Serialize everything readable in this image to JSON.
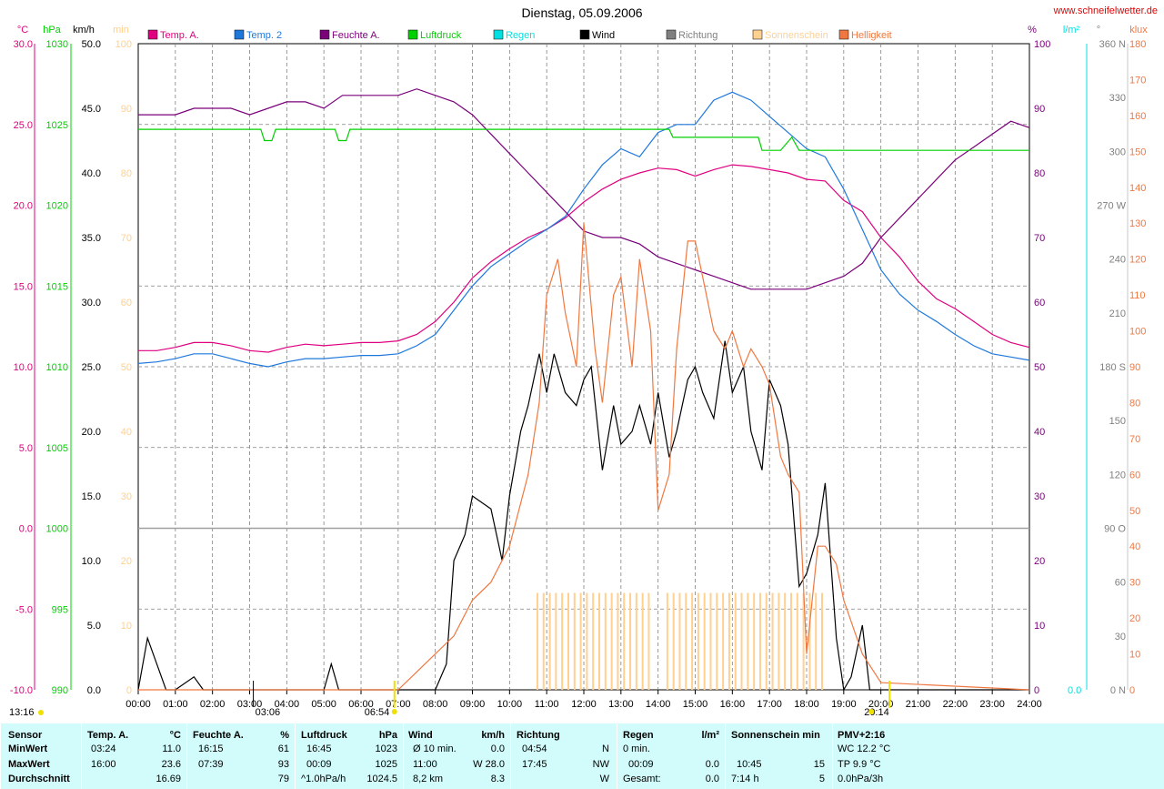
{
  "title": "Dienstag, 05.09.2006",
  "site": "www.schneifelwetter.de",
  "colors": {
    "tempA": "#e0007f",
    "temp2": "#1e78dc",
    "feuchte": "#7a007a",
    "luftdruck": "#00d000",
    "regen": "#00e0e0",
    "wind": "#000000",
    "richtung": "#808080",
    "sonne": "#ffd090",
    "helligkeit": "#f07840",
    "grid": "#808080",
    "panel": "#d2fcfc"
  },
  "legend": [
    {
      "label": "Temp. A.",
      "color": "#e0007f"
    },
    {
      "label": "Temp. 2",
      "color": "#1e78dc"
    },
    {
      "label": "Feuchte A.",
      "color": "#7a007a"
    },
    {
      "label": "Luftdruck",
      "color": "#00d000"
    },
    {
      "label": "Regen",
      "color": "#00e0e0"
    },
    {
      "label": "Wind",
      "color": "#000000"
    },
    {
      "label": "Richtung",
      "color": "#808080"
    },
    {
      "label": "Sonnenschein",
      "color": "#ffd090"
    },
    {
      "label": "Helligkeit",
      "color": "#f07840"
    }
  ],
  "axis_units": {
    "temp": "°C",
    "pressure": "hPa",
    "wind": "km/h",
    "minutes": "min",
    "humidity": "%",
    "rain": "l/m²",
    "direction": "°",
    "lux": "klux"
  },
  "left_axes": {
    "temp": [
      "30.0",
      "25.0",
      "20.0",
      "15.0",
      "10.0",
      "5.0",
      "0.0",
      "-5.0",
      "-10.0"
    ],
    "pressure": [
      "1030",
      "1025",
      "1020",
      "1015",
      "1010",
      "1005",
      "1000",
      "995",
      "990"
    ],
    "wind": [
      "50.0",
      "45.0",
      "40.0",
      "35.0",
      "30.0",
      "25.0",
      "20.0",
      "15.0",
      "10.0",
      "5.0",
      "0.0"
    ],
    "minutes": [
      "100",
      "90",
      "80",
      "70",
      "60",
      "50",
      "40",
      "30",
      "20",
      "10",
      "0"
    ]
  },
  "right_axes": {
    "humidity": [
      "100",
      "90",
      "80",
      "70",
      "60",
      "50",
      "40",
      "30",
      "20",
      "10",
      "0"
    ],
    "rain": "0.0",
    "direction": [
      "360 N",
      "330",
      "300",
      "270 W",
      "240",
      "210",
      "180 S",
      "150",
      "120",
      "90 O",
      "60",
      "30",
      "0 N"
    ],
    "lux": [
      "180",
      "170",
      "160",
      "150",
      "140",
      "130",
      "120",
      "110",
      "100",
      "90",
      "80",
      "70",
      "60",
      "50",
      "40",
      "30",
      "20",
      "10",
      "0"
    ]
  },
  "x_ticks": [
    "00:00",
    "01:00",
    "02:00",
    "03:00",
    "04:00",
    "05:00",
    "06:00",
    "07:00",
    "08:00",
    "09:00",
    "10:00",
    "11:00",
    "12:00",
    "13:00",
    "14:00",
    "15:00",
    "16:00",
    "17:00",
    "18:00",
    "19:00",
    "20:00",
    "21:00",
    "22:00",
    "23:00",
    "24:00"
  ],
  "markers": {
    "current_time": "13:16",
    "min_temp_time": "03:06",
    "sunrise": "06:54",
    "sunset": "20:14"
  },
  "chart_data": {
    "type": "line",
    "x_unit": "hours",
    "xlim": [
      0,
      24
    ],
    "series": [
      {
        "name": "Temp. A.",
        "unit": "°C",
        "x": [
          0,
          0.5,
          1,
          1.5,
          2,
          2.5,
          3,
          3.5,
          4,
          4.5,
          5,
          5.5,
          6,
          6.5,
          7,
          7.5,
          8,
          8.5,
          9,
          9.5,
          10,
          10.5,
          11,
          11.5,
          12,
          12.5,
          13,
          13.5,
          14,
          14.5,
          15,
          15.5,
          16,
          16.5,
          17,
          17.5,
          18,
          18.5,
          19,
          19.5,
          20,
          20.5,
          21,
          21.5,
          22,
          22.5,
          23,
          23.5,
          24
        ],
        "values": [
          11.0,
          11.0,
          11.2,
          11.5,
          11.5,
          11.3,
          11.0,
          10.9,
          11.2,
          11.4,
          11.3,
          11.4,
          11.5,
          11.5,
          11.6,
          12.0,
          12.8,
          14.0,
          15.5,
          16.5,
          17.3,
          18.0,
          18.5,
          19.2,
          20.2,
          21.0,
          21.6,
          22.0,
          22.3,
          22.2,
          21.8,
          22.2,
          22.5,
          22.4,
          22.2,
          22.0,
          21.6,
          21.5,
          20.3,
          19.6,
          18.0,
          16.8,
          15.3,
          14.2,
          13.6,
          12.8,
          12.0,
          11.5,
          11.2
        ]
      },
      {
        "name": "Temp. 2",
        "unit": "°C",
        "x": [
          0,
          0.5,
          1,
          1.5,
          2,
          2.5,
          3,
          3.5,
          4,
          4.5,
          5,
          5.5,
          6,
          6.5,
          7,
          7.5,
          8,
          8.5,
          9,
          9.5,
          10,
          10.5,
          11,
          11.5,
          12,
          12.5,
          13,
          13.5,
          14,
          14.5,
          15,
          15.5,
          16,
          16.5,
          17,
          17.5,
          18,
          18.5,
          19,
          19.5,
          20,
          20.5,
          21,
          21.5,
          22,
          22.5,
          23,
          23.5,
          24
        ],
        "values": [
          10.2,
          10.3,
          10.5,
          10.8,
          10.8,
          10.5,
          10.2,
          10.0,
          10.3,
          10.5,
          10.5,
          10.6,
          10.7,
          10.7,
          10.8,
          11.3,
          12.0,
          13.5,
          15.0,
          16.2,
          17.0,
          17.8,
          18.5,
          19.3,
          21.0,
          22.5,
          23.5,
          23.0,
          24.5,
          25.0,
          25.0,
          26.5,
          27.0,
          26.5,
          25.5,
          24.5,
          23.5,
          23.0,
          21.0,
          18.5,
          16.0,
          14.5,
          13.5,
          12.8,
          12.0,
          11.3,
          10.8,
          10.6,
          10.4
        ]
      },
      {
        "name": "Feuchte A.",
        "unit": "%",
        "x": [
          0,
          0.5,
          1,
          1.5,
          2,
          2.5,
          3,
          3.5,
          4,
          4.5,
          5,
          5.5,
          6,
          6.5,
          7,
          7.5,
          8,
          8.5,
          9,
          9.5,
          10,
          10.5,
          11,
          11.5,
          12,
          12.5,
          13,
          13.5,
          14,
          14.5,
          15,
          15.5,
          16,
          16.5,
          17,
          17.5,
          18,
          18.5,
          19,
          19.5,
          20,
          20.5,
          21,
          21.5,
          22,
          22.5,
          23,
          23.5,
          24
        ],
        "values": [
          89,
          89,
          89,
          90,
          90,
          90,
          89,
          90,
          91,
          91,
          90,
          92,
          92,
          92,
          92,
          93,
          92,
          91,
          89,
          86,
          83,
          80,
          77,
          74,
          71,
          70,
          70,
          69,
          67,
          66,
          65,
          64,
          63,
          62,
          62,
          62,
          62,
          63,
          64,
          66,
          70,
          73,
          76,
          79,
          82,
          84,
          86,
          88,
          87
        ]
      },
      {
        "name": "Luftdruck",
        "unit": "hPa",
        "x": [
          0,
          3.3,
          3.4,
          3.6,
          3.7,
          5.3,
          5.4,
          5.6,
          5.7,
          14.3,
          14.4,
          16.7,
          16.8,
          17.3,
          17.6,
          17.8,
          24
        ],
        "values": [
          1024.7,
          1024.7,
          1024.0,
          1024.0,
          1024.7,
          1024.7,
          1024.0,
          1024.0,
          1024.7,
          1024.7,
          1024.2,
          1024.2,
          1023.4,
          1023.4,
          1024.2,
          1023.4,
          1023.4
        ]
      },
      {
        "name": "Wind",
        "unit": "km/h",
        "x": [
          0,
          0.25,
          0.5,
          0.75,
          1,
          1.5,
          1.75,
          2,
          5,
          5.2,
          5.4,
          5.6,
          6,
          8,
          8.3,
          8.5,
          8.8,
          9,
          9.5,
          9.8,
          10,
          10.3,
          10.5,
          10.8,
          11,
          11.2,
          11.5,
          11.8,
          12,
          12.2,
          12.5,
          12.8,
          13,
          13.3,
          13.5,
          13.8,
          14,
          14.3,
          14.5,
          14.8,
          15,
          15.2,
          15.5,
          15.8,
          16,
          16.3,
          16.5,
          16.8,
          17,
          17.3,
          17.5,
          17.8,
          18,
          18.3,
          18.5,
          18.8,
          19,
          19.2,
          19.5,
          19.7,
          20,
          24
        ],
        "values": [
          0,
          4,
          2,
          0,
          0,
          1,
          0,
          0,
          0,
          2,
          0,
          0,
          0,
          0,
          2,
          10,
          12,
          15,
          14,
          10,
          15,
          20,
          22,
          26,
          23,
          26,
          23,
          22,
          24,
          25,
          17,
          22,
          19,
          20,
          22,
          19,
          23,
          18,
          20,
          24,
          25,
          23,
          21,
          27,
          23,
          25,
          20,
          17,
          24,
          22,
          19,
          8,
          9,
          12,
          16,
          4,
          0,
          1,
          5,
          0,
          0,
          0
        ]
      },
      {
        "name": "Helligkeit",
        "unit": "klux",
        "x": [
          0,
          7,
          7.5,
          8,
          8.5,
          9,
          9.5,
          10,
          10.5,
          10.8,
          11,
          11.3,
          11.5,
          11.8,
          12,
          12.3,
          12.5,
          12.8,
          13,
          13.3,
          13.5,
          13.8,
          14,
          14.3,
          14.5,
          14.8,
          15,
          15.3,
          15.5,
          15.8,
          16,
          16.3,
          16.5,
          16.8,
          17,
          17.3,
          17.5,
          17.8,
          18,
          18.3,
          18.5,
          18.8,
          19,
          19.5,
          20,
          24
        ],
        "values": [
          0,
          0,
          5,
          10,
          15,
          25,
          30,
          40,
          60,
          80,
          110,
          120,
          105,
          90,
          130,
          95,
          80,
          110,
          115,
          90,
          120,
          100,
          50,
          60,
          95,
          125,
          125,
          110,
          100,
          95,
          100,
          90,
          95,
          90,
          85,
          65,
          60,
          55,
          10,
          40,
          40,
          35,
          25,
          10,
          2,
          0
        ]
      }
    ],
    "sunshine_minutes": {
      "start": 10.75,
      "end": 18.5,
      "value": 15
    },
    "ylim": {
      "temp": [
        -10,
        30
      ],
      "pressure": [
        990,
        1030
      ],
      "wind": [
        0,
        50
      ],
      "humidity": [
        0,
        100
      ],
      "klux": [
        0,
        180
      ]
    }
  },
  "stats": {
    "sensor": {
      "header": "Sensor",
      "rows": [
        "MinWert",
        "MaxWert",
        "Durchschnitt"
      ]
    },
    "temp": {
      "header": "Temp. A.",
      "unit": "°C",
      "rows": [
        [
          "03:24",
          "11.0"
        ],
        [
          "16:00",
          "23.6"
        ],
        [
          "",
          "16.69"
        ]
      ]
    },
    "feuchte": {
      "header": "Feuchte A.",
      "unit": "%",
      "rows": [
        [
          "16:15",
          "61"
        ],
        [
          "07:39",
          "93"
        ],
        [
          "",
          "79"
        ]
      ]
    },
    "luftdruck": {
      "header": "Luftdruck",
      "unit": "hPa",
      "rows": [
        [
          "16:45",
          "1023"
        ],
        [
          "00:09",
          "1025"
        ],
        [
          "^1.0hPa/h",
          "1024.5"
        ]
      ]
    },
    "wind": {
      "header": "Wind",
      "unit": "km/h",
      "rows": [
        [
          "Ø 10 min.",
          "0.0"
        ],
        [
          "11:00",
          "W 28.0"
        ],
        [
          "8,2 km",
          "8.3"
        ]
      ]
    },
    "richtung": {
      "header": "Richtung",
      "rows": [
        [
          "04:54",
          "N"
        ],
        [
          "17:45",
          "NW"
        ],
        [
          "",
          "W"
        ]
      ]
    },
    "regen": {
      "header": "Regen",
      "unit": "l/m²",
      "rows": [
        [
          "0 min.",
          ""
        ],
        [
          "00:09",
          "0.0"
        ],
        [
          "Gesamt:",
          "0.0"
        ]
      ]
    },
    "sonne": {
      "header": "Sonnenschein min",
      "rows": [
        [
          "",
          ""
        ],
        [
          "10:45",
          "15"
        ],
        [
          "7:14 h",
          "5"
        ]
      ]
    },
    "pmv": {
      "header": "PMV+2:16",
      "rows": [
        "WC 12.2 °C",
        "TP 9.9 °C",
        "0.0hPa/3h"
      ]
    }
  }
}
